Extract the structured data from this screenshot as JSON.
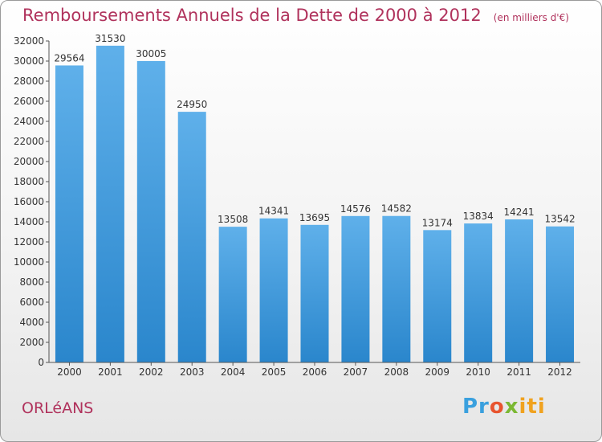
{
  "chart_data": {
    "type": "bar",
    "title": "Remboursements Annuels de la Dette de 2000 à 2012",
    "subtitle": "(en milliers d'€)",
    "categories": [
      "2000",
      "2001",
      "2002",
      "2003",
      "2004",
      "2005",
      "2006",
      "2007",
      "2008",
      "2009",
      "2010",
      "2011",
      "2012"
    ],
    "values": [
      29564,
      31530,
      30005,
      24950,
      13508,
      14341,
      13695,
      14576,
      14582,
      13174,
      13834,
      14241,
      13542
    ],
    "ylim": [
      0,
      32000
    ],
    "yticks": [
      0,
      2000,
      4000,
      6000,
      8000,
      10000,
      12000,
      14000,
      16000,
      18000,
      20000,
      22000,
      24000,
      26000,
      28000,
      30000,
      32000
    ],
    "xlabel": "",
    "ylabel": "",
    "grid": false,
    "colors": {
      "bar_light": "#5fb0ea",
      "bar_dark": "#2a86cc",
      "title": "#b0325c"
    }
  },
  "footer": {
    "city": "ORLéANS",
    "logo": [
      "Pr",
      "o",
      "x",
      "iti"
    ]
  }
}
